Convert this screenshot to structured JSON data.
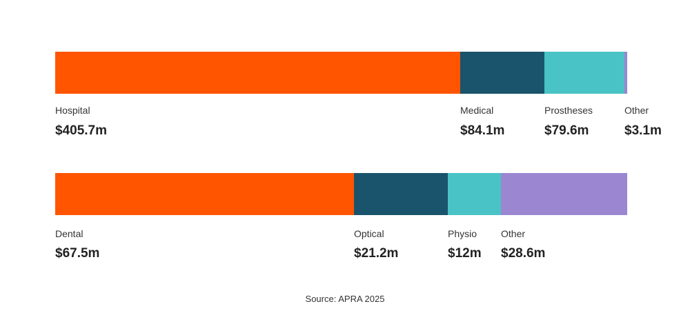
{
  "chart_data": [
    {
      "type": "bar",
      "orientation": "horizontal-stacked",
      "title": "",
      "categories": [
        "Hospital",
        "Medical",
        "Prostheses",
        "Other"
      ],
      "values": [
        405.7,
        84.1,
        79.6,
        3.1
      ],
      "value_labels": [
        "$405.7m",
        "$84.1m",
        "$79.6m",
        "$3.1m"
      ],
      "unit": "$m",
      "colors": [
        "#ff5500",
        "#1a546c",
        "#4ac3c6",
        "#9b86d2"
      ]
    },
    {
      "type": "bar",
      "orientation": "horizontal-stacked",
      "title": "",
      "categories": [
        "Dental",
        "Optical",
        "Physio",
        "Other"
      ],
      "values": [
        67.5,
        21.2,
        12,
        28.6
      ],
      "value_labels": [
        "$67.5m",
        "$21.2m",
        "$12m",
        "$28.6m"
      ],
      "unit": "$m",
      "colors": [
        "#ff5500",
        "#1a546c",
        "#4ac3c6",
        "#9b86d2"
      ]
    }
  ],
  "source": "Source: APRA 2025"
}
